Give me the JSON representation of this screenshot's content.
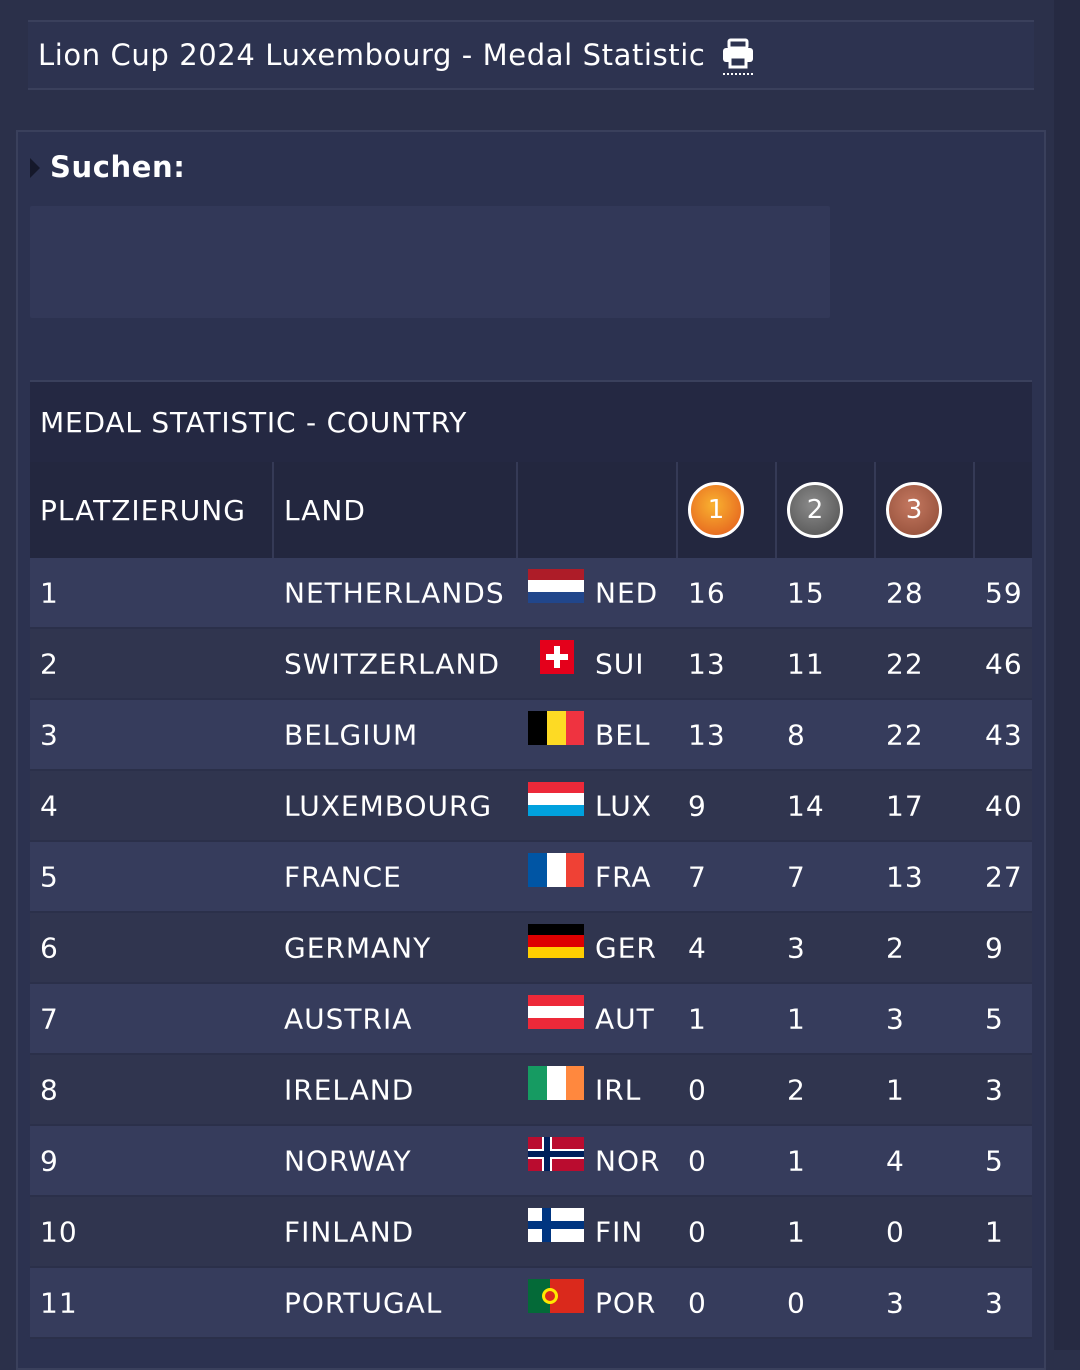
{
  "title": "Lion Cup 2024 Luxembourg - Medal Statistic",
  "search": {
    "label": "Suchen:"
  },
  "table": {
    "heading": "MEDAL STATISTIC - COUNTRY",
    "columns": {
      "rank": "PLATZIERUNG",
      "country": "LAND",
      "gold": "1",
      "silver": "2",
      "bronze": "3"
    },
    "medal_colors": {
      "gold": "#f39a27",
      "silver": "#6b6b6b",
      "bronze": "#a85f48"
    },
    "rows": [
      {
        "rank": "1",
        "name": "NETHERLANDS",
        "code": "NED",
        "flag": "netherlands-flag-icon",
        "gold": "16",
        "silver": "15",
        "bronze": "28",
        "total": "59"
      },
      {
        "rank": "2",
        "name": "SWITZERLAND",
        "code": "SUI",
        "flag": "switzerland-flag-icon",
        "gold": "13",
        "silver": "11",
        "bronze": "22",
        "total": "46"
      },
      {
        "rank": "3",
        "name": "BELGIUM",
        "code": "BEL",
        "flag": "belgium-flag-icon",
        "gold": "13",
        "silver": "8",
        "bronze": "22",
        "total": "43"
      },
      {
        "rank": "4",
        "name": "LUXEMBOURG",
        "code": "LUX",
        "flag": "luxembourg-flag-icon",
        "gold": "9",
        "silver": "14",
        "bronze": "17",
        "total": "40"
      },
      {
        "rank": "5",
        "name": "FRANCE",
        "code": "FRA",
        "flag": "france-flag-icon",
        "gold": "7",
        "silver": "7",
        "bronze": "13",
        "total": "27"
      },
      {
        "rank": "6",
        "name": "GERMANY",
        "code": "GER",
        "flag": "germany-flag-icon",
        "gold": "4",
        "silver": "3",
        "bronze": "2",
        "total": "9"
      },
      {
        "rank": "7",
        "name": "AUSTRIA",
        "code": "AUT",
        "flag": "austria-flag-icon",
        "gold": "1",
        "silver": "1",
        "bronze": "3",
        "total": "5"
      },
      {
        "rank": "8",
        "name": "IRELAND",
        "code": "IRL",
        "flag": "ireland-flag-icon",
        "gold": "0",
        "silver": "2",
        "bronze": "1",
        "total": "3"
      },
      {
        "rank": "9",
        "name": "NORWAY",
        "code": "NOR",
        "flag": "norway-flag-icon",
        "gold": "0",
        "silver": "1",
        "bronze": "4",
        "total": "5"
      },
      {
        "rank": "10",
        "name": "FINLAND",
        "code": "FIN",
        "flag": "finland-flag-icon",
        "gold": "0",
        "silver": "1",
        "bronze": "0",
        "total": "1"
      },
      {
        "rank": "11",
        "name": "PORTUGAL",
        "code": "POR",
        "flag": "portugal-flag-icon",
        "gold": "0",
        "silver": "0",
        "bronze": "3",
        "total": "3"
      }
    ]
  }
}
